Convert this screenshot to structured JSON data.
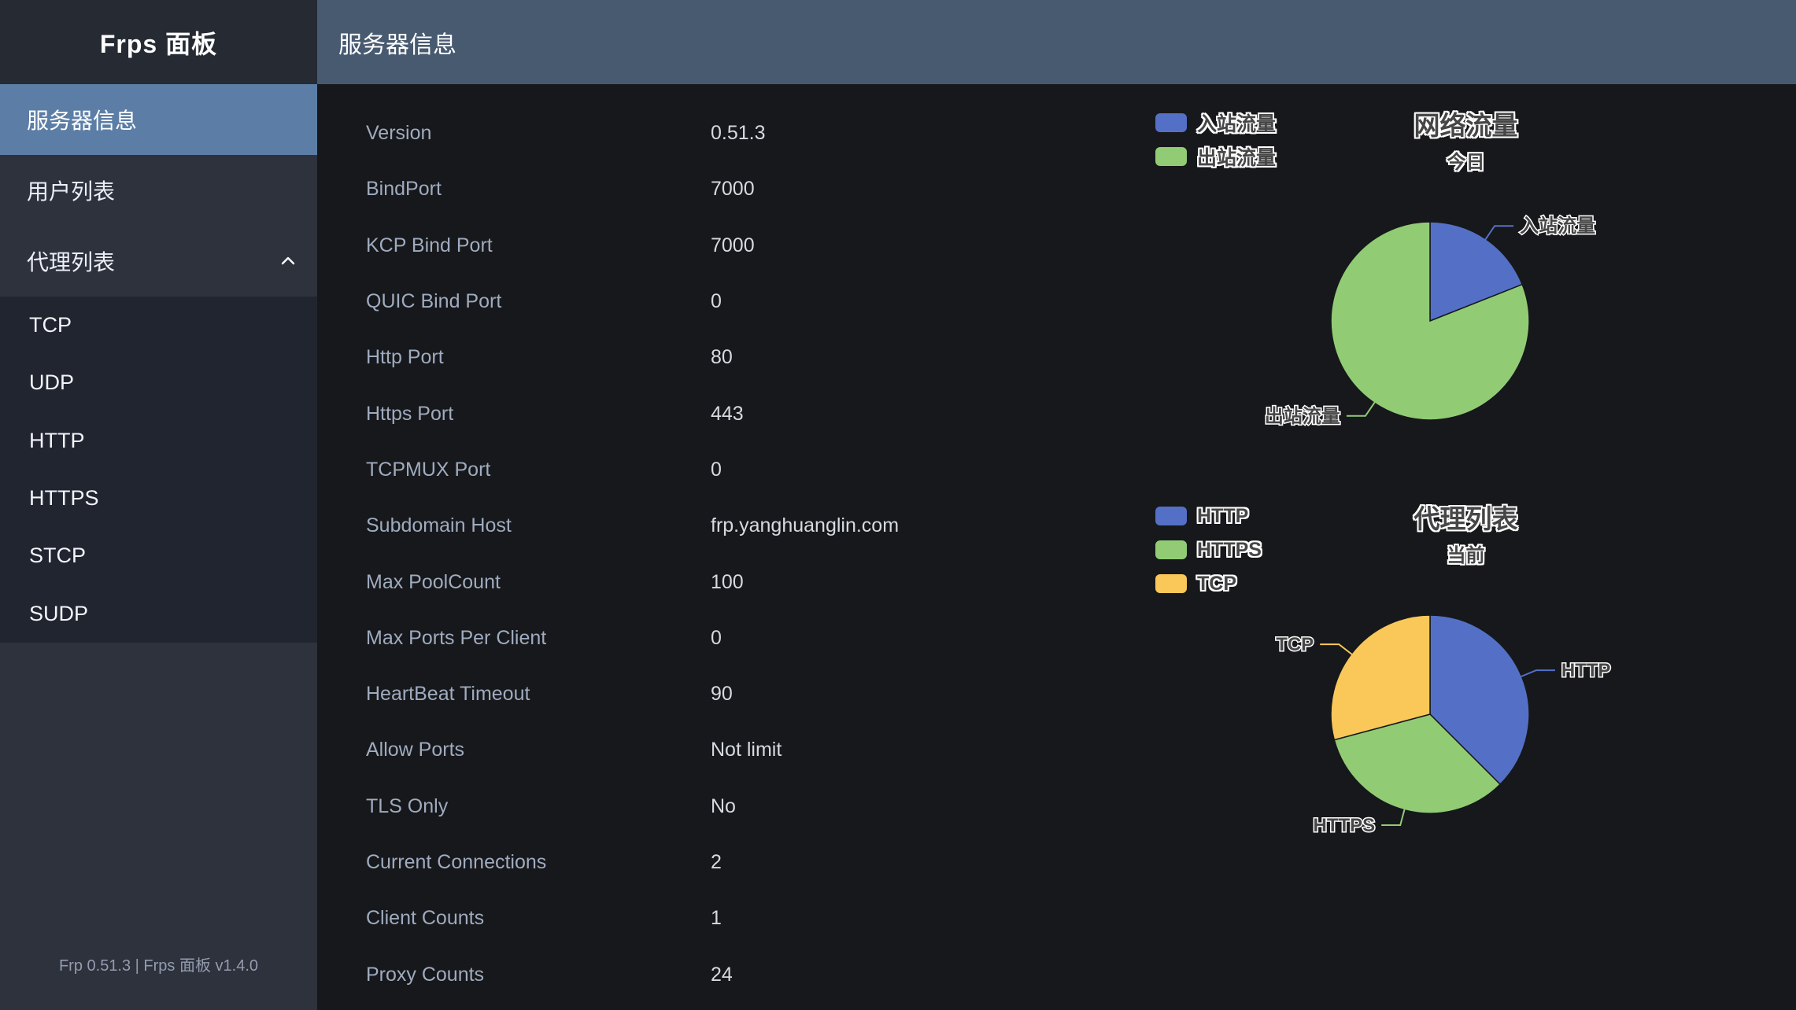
{
  "sidebar": {
    "title": "Frps 面板",
    "items": [
      {
        "label": "服务器信息",
        "selected": true
      },
      {
        "label": "用户列表"
      },
      {
        "label": "代理列表",
        "expanded": true,
        "children": [
          "TCP",
          "UDP",
          "HTTP",
          "HTTPS",
          "STCP",
          "SUDP"
        ]
      }
    ],
    "footer": "Frp 0.51.3 | Frps 面板 v1.4.0"
  },
  "header": {
    "title": "服务器信息"
  },
  "server_info": {
    "rows": [
      {
        "label": "Version",
        "value": "0.51.3"
      },
      {
        "label": "BindPort",
        "value": "7000"
      },
      {
        "label": "KCP Bind Port",
        "value": "7000"
      },
      {
        "label": "QUIC Bind Port",
        "value": "0"
      },
      {
        "label": "Http Port",
        "value": "80"
      },
      {
        "label": "Https Port",
        "value": "443"
      },
      {
        "label": "TCPMUX Port",
        "value": "0"
      },
      {
        "label": "Subdomain Host",
        "value": "frp.yanghuanglin.com"
      },
      {
        "label": "Max PoolCount",
        "value": "100"
      },
      {
        "label": "Max Ports Per Client",
        "value": "0"
      },
      {
        "label": "HeartBeat Timeout",
        "value": "90"
      },
      {
        "label": "Allow Ports",
        "value": "Not limit"
      },
      {
        "label": "TLS Only",
        "value": "No"
      },
      {
        "label": "Current Connections",
        "value": "2"
      },
      {
        "label": "Client Counts",
        "value": "1"
      },
      {
        "label": "Proxy Counts",
        "value": "24"
      }
    ]
  },
  "chart_data": [
    {
      "type": "pie",
      "title": "网络流量",
      "subtitle": "今日",
      "legend_position": "left-top",
      "legend": [
        "入站流量",
        "出站流量"
      ],
      "slices": [
        {
          "name": "入站流量",
          "value": 19,
          "color": "#5470c6"
        },
        {
          "name": "出站流量",
          "value": 81,
          "color": "#91cc75"
        }
      ],
      "note": "values are percent shares estimated from slice angles"
    },
    {
      "type": "pie",
      "title": "代理列表",
      "subtitle": "当前",
      "legend_position": "left-top",
      "legend": [
        "HTTP",
        "HTTPS",
        "TCP"
      ],
      "slices": [
        {
          "name": "HTTP",
          "value": 9,
          "color": "#5470c6"
        },
        {
          "name": "HTTPS",
          "value": 8,
          "color": "#91cc75"
        },
        {
          "name": "TCP",
          "value": 7,
          "color": "#fac858"
        }
      ],
      "note": "proxy counts per type, total 24"
    }
  ],
  "theme": {
    "header_bg": "#485a70",
    "sidebar_bg": "#2d323d",
    "sidebar_submenu_bg": "#212530",
    "sidebar_active_bg": "#5c7ea6",
    "content_bg": "#17181b",
    "pie_blue": "#5470c6",
    "pie_green": "#91cc75",
    "pie_yellow": "#fac858"
  }
}
